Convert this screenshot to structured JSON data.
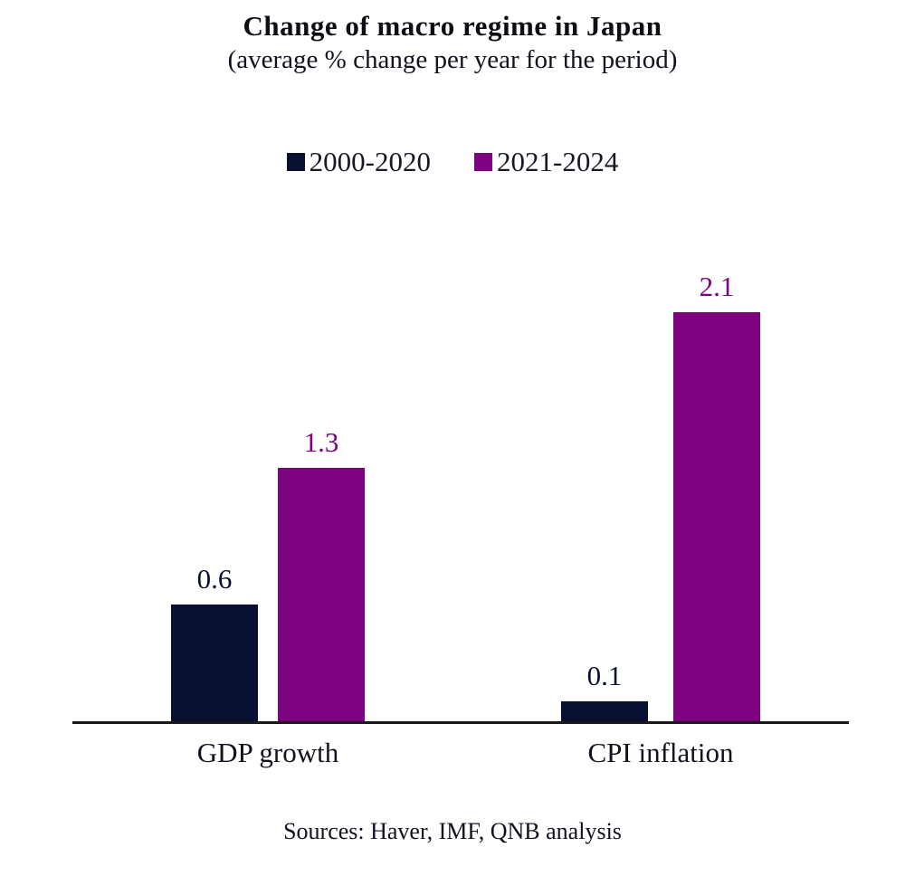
{
  "chart": {
    "title": "Change of macro regime in Japan",
    "subtitle": "(average % change per year for the period)",
    "sources": "Sources: Haver, IMF, QNB analysis"
  },
  "chart_data": {
    "type": "bar",
    "title": "Change of macro regime in Japan",
    "subtitle": "(average % change per year for the period)",
    "categories": [
      "GDP growth",
      "CPI inflation"
    ],
    "series": [
      {
        "name": "2000-2020",
        "color": "#071033",
        "values": [
          0.6,
          0.1
        ]
      },
      {
        "name": "2021-2024",
        "color": "#7D0380",
        "values": [
          1.3,
          2.1
        ]
      }
    ],
    "data_labels": [
      "0.6",
      "1.3",
      "0.1",
      "2.1"
    ],
    "xlabel": "",
    "ylabel": "",
    "ylim": [
      0,
      2.4
    ],
    "grid": false,
    "legend_position": "top",
    "axis_color": "#1a1a1a",
    "background_color": "#ffffff"
  }
}
